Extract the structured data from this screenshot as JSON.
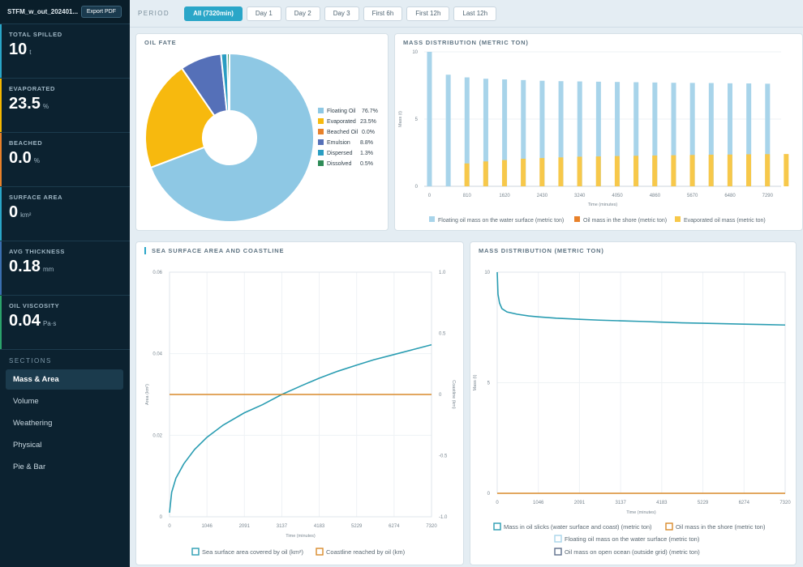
{
  "sidebar": {
    "file_title": "STFM_w_out_202401...",
    "export_label": "Export PDF",
    "metrics": [
      {
        "label": "TOTAL SPILLED",
        "value": "10",
        "unit": "t",
        "accent": "#2aa6c8"
      },
      {
        "label": "EVAPORATED",
        "value": "23.5",
        "unit": "%",
        "accent": "#f5b700"
      },
      {
        "label": "BEACHED",
        "value": "0.0",
        "unit": "%",
        "accent": "#e8812a"
      },
      {
        "label": "SURFACE AREA",
        "value": "0",
        "unit": "km²",
        "accent": "#2aa6c8"
      },
      {
        "label": "AVG THICKNESS",
        "value": "0.18",
        "unit": "mm",
        "accent": "#3a6fb0"
      },
      {
        "label": "OIL VISCOSITY",
        "value": "0.04",
        "unit": "Pa·s",
        "accent": "#2ba36b"
      }
    ],
    "sections_title": "SECTIONS",
    "sections": [
      "Mass & Area",
      "Volume",
      "Weathering",
      "Physical",
      "Pie & Bar"
    ],
    "active_section": "Mass & Area"
  },
  "topbar": {
    "period_label": "PERIOD",
    "periods": [
      "All (7320min)",
      "Day 1",
      "Day 2",
      "Day 3",
      "First 6h",
      "First 12h",
      "Last 12h"
    ],
    "active_period": "All (7320min)"
  },
  "panels": {
    "oil_fate_title": "OIL FATE",
    "mass_bar_title": "MASS DISTRIBUTION (METRIC TON)",
    "sea_surface_title": "SEA SURFACE AREA AND COASTLINE",
    "mass_line_title": "MASS DISTRIBUTION (METRIC TON)"
  },
  "chart_data": [
    {
      "type": "pie",
      "title": "OIL FATE",
      "donut": true,
      "legend_position": "right",
      "slices": [
        {
          "label": "Floating Oil",
          "value": 76.7,
          "display": "76.7%",
          "color": "#8ec8e4"
        },
        {
          "label": "Evaporated",
          "value": 23.5,
          "display": "23.5%",
          "color": "#f7b90e"
        },
        {
          "label": "Beached Oil",
          "value": 0.0,
          "display": "0.0%",
          "color": "#e8812a"
        },
        {
          "label": "Emulsion",
          "value": 8.8,
          "display": "8.8%",
          "color": "#5570b8"
        },
        {
          "label": "Dispersed",
          "value": 1.3,
          "display": "1.3%",
          "color": "#2a9dc2"
        },
        {
          "label": "Dissolved",
          "value": 0.5,
          "display": "0.5%",
          "color": "#2e8b57"
        }
      ]
    },
    {
      "type": "bar",
      "title": "MASS DISTRIBUTION (METRIC TON)",
      "xlabel": "Time (minutes)",
      "ylabel": "Mass (t)",
      "ylim": [
        0,
        10
      ],
      "yticks": [
        0,
        5,
        10
      ],
      "x": [
        0,
        405,
        810,
        1215,
        1620,
        2025,
        2430,
        2835,
        3240,
        3645,
        4050,
        4455,
        4860,
        5265,
        5670,
        6075,
        6480,
        6885,
        7290
      ],
      "xtick_labels": [
        "0",
        "810",
        "1620",
        "2430",
        "3240",
        "4050",
        "4860",
        "5670",
        "6480",
        "7290"
      ],
      "legend_position": "bottom",
      "series": [
        {
          "name": "Floating oil mass on the water surface (metric ton)",
          "color": "#a8d4ea",
          "values": [
            10,
            8.3,
            8.1,
            8.0,
            7.95,
            7.9,
            7.85,
            7.82,
            7.8,
            7.78,
            7.76,
            7.74,
            7.72,
            7.7,
            7.69,
            7.68,
            7.66,
            7.65,
            7.63
          ]
        },
        {
          "name": "Oil mass in the shore (metric ton)",
          "color": "#e8812a",
          "values": [
            0,
            0,
            0,
            0,
            0,
            0,
            0,
            0,
            0,
            0,
            0,
            0,
            0,
            0,
            0,
            0,
            0,
            0,
            0
          ]
        },
        {
          "name": "Evaporated oil mass (metric ton)",
          "color": "#f7c84a",
          "values": [
            0,
            1.7,
            1.85,
            1.95,
            2.05,
            2.1,
            2.15,
            2.2,
            2.22,
            2.25,
            2.27,
            2.29,
            2.31,
            2.33,
            2.35,
            2.36,
            2.38,
            2.39,
            2.4
          ]
        }
      ]
    },
    {
      "type": "line",
      "title": "SEA SURFACE AREA AND COASTLINE",
      "xlabel": "Time (minutes)",
      "ylabel": "Area (km²)",
      "ylabel_right": "Coastline (km)",
      "xlim": [
        0,
        7320
      ],
      "ylim": [
        0,
        0.06
      ],
      "ylim_right": [
        -1,
        1
      ],
      "xticks": [
        "0",
        "1046",
        "2091",
        "3137",
        "4183",
        "5229",
        "6274",
        "7320"
      ],
      "yticks": [
        "0",
        "0.02",
        "0.04",
        "0.06"
      ],
      "yticks_right": [
        "-1.0",
        "-0.5",
        "0",
        "0.5",
        "1.0"
      ],
      "legend_position": "bottom",
      "series": [
        {
          "name": "Sea surface area covered by oil (km²)",
          "color": "#2a9db2",
          "x": [
            0,
            60,
            180,
            400,
            700,
            1046,
            1500,
            2091,
            2600,
            3137,
            3700,
            4183,
            4700,
            5229,
            5700,
            6274,
            6800,
            7320
          ],
          "y": [
            0.001,
            0.006,
            0.0095,
            0.013,
            0.0165,
            0.0195,
            0.0225,
            0.0255,
            0.0275,
            0.03,
            0.0322,
            0.034,
            0.0357,
            0.0372,
            0.0385,
            0.0398,
            0.041,
            0.0422
          ]
        },
        {
          "name": "Coastline reached by oil (km)",
          "color": "#d98a2b",
          "axis": "right",
          "x": [
            0,
            7320
          ],
          "y": [
            0,
            0
          ]
        }
      ]
    },
    {
      "type": "line",
      "title": "MASS DISTRIBUTION (METRIC TON)",
      "xlabel": "Time (minutes)",
      "ylabel": "Mass (t)",
      "xlim": [
        0,
        7320
      ],
      "ylim": [
        0,
        10
      ],
      "xticks": [
        "0",
        "1046",
        "2091",
        "3137",
        "4183",
        "5229",
        "6274",
        "7320"
      ],
      "yticks": [
        "0",
        "5",
        "10"
      ],
      "legend_position": "bottom",
      "series": [
        {
          "name": "Mass in oil slicks (water surface and coast) (metric ton)",
          "color": "#2a9db2",
          "x": [
            0,
            20,
            60,
            120,
            250,
            500,
            800,
            1046,
            1500,
            2091,
            2600,
            3137,
            3700,
            4183,
            4700,
            5229,
            5700,
            6274,
            6800,
            7320
          ],
          "y": [
            10,
            9.0,
            8.6,
            8.35,
            8.2,
            8.1,
            8.02,
            7.98,
            7.92,
            7.87,
            7.83,
            7.8,
            7.77,
            7.74,
            7.71,
            7.69,
            7.67,
            7.65,
            7.63,
            7.61
          ]
        },
        {
          "name": "Oil mass in the shore (metric ton)",
          "color": "#d98a2b",
          "x": [
            0,
            7320
          ],
          "y": [
            0,
            0
          ]
        },
        {
          "name": "Floating oil mass on the water surface (metric ton)",
          "color": "#a8d4ea",
          "x": [],
          "y": []
        },
        {
          "name": "Oil mass on open ocean (outside grid) (metric ton)",
          "color": "#5d6e8c",
          "x": [],
          "y": []
        }
      ]
    }
  ]
}
